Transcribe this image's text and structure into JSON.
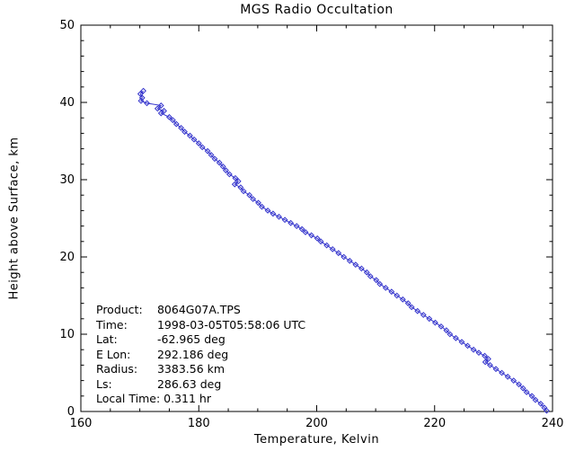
{
  "chart_data": {
    "type": "line",
    "title": "MGS Radio Occultation",
    "xlabel": "Temperature, Kelvin",
    "ylabel": "Height above Surface, km",
    "xlim": [
      160,
      240
    ],
    "ylim": [
      0,
      50
    ],
    "x_major_ticks": [
      160,
      180,
      200,
      220,
      240
    ],
    "y_major_ticks": [
      0,
      10,
      20,
      30,
      40,
      50
    ],
    "x_minor_step": 5,
    "y_minor_step": 2,
    "grid": false,
    "legend": "none",
    "line_color": "#3333cc",
    "axis_color": "#000000",
    "marker": "open-diamond",
    "series": [
      {
        "name": "temperature-profile",
        "points": [
          [
            170.6,
            41.5
          ],
          [
            170.1,
            41.1
          ],
          [
            170.4,
            40.6
          ],
          [
            170.2,
            40.2
          ],
          [
            171.2,
            39.9
          ],
          [
            173.6,
            39.6
          ],
          [
            173.0,
            39.2
          ],
          [
            174.1,
            38.9
          ],
          [
            173.6,
            38.6
          ],
          [
            175.0,
            38.1
          ],
          [
            175.6,
            37.7
          ],
          [
            176.2,
            37.2
          ],
          [
            177.0,
            36.7
          ],
          [
            177.6,
            36.2
          ],
          [
            178.5,
            35.7
          ],
          [
            179.2,
            35.2
          ],
          [
            180.0,
            34.7
          ],
          [
            180.6,
            34.2
          ],
          [
            181.5,
            33.7
          ],
          [
            182.1,
            33.2
          ],
          [
            182.7,
            32.7
          ],
          [
            183.5,
            32.2
          ],
          [
            184.1,
            31.7
          ],
          [
            184.6,
            31.2
          ],
          [
            185.2,
            30.7
          ],
          [
            186.2,
            30.2
          ],
          [
            186.7,
            29.8
          ],
          [
            186.1,
            29.4
          ],
          [
            187.1,
            29.0
          ],
          [
            187.6,
            28.5
          ],
          [
            188.6,
            28.0
          ],
          [
            189.2,
            27.5
          ],
          [
            190.1,
            27.0
          ],
          [
            190.7,
            26.5
          ],
          [
            191.7,
            26.0
          ],
          [
            192.6,
            25.6
          ],
          [
            193.6,
            25.2
          ],
          [
            194.6,
            24.8
          ],
          [
            195.6,
            24.4
          ],
          [
            196.6,
            24.0
          ],
          [
            197.5,
            23.6
          ],
          [
            198.1,
            23.2
          ],
          [
            199.1,
            22.8
          ],
          [
            200.1,
            22.4
          ],
          [
            200.7,
            22.0
          ],
          [
            201.7,
            21.5
          ],
          [
            202.7,
            21.0
          ],
          [
            203.7,
            20.5
          ],
          [
            204.6,
            20.0
          ],
          [
            205.6,
            19.5
          ],
          [
            206.6,
            19.0
          ],
          [
            207.6,
            18.5
          ],
          [
            208.5,
            18.0
          ],
          [
            209.1,
            17.5
          ],
          [
            210.1,
            17.0
          ],
          [
            210.7,
            16.5
          ],
          [
            211.7,
            16.0
          ],
          [
            212.7,
            15.5
          ],
          [
            213.6,
            15.0
          ],
          [
            214.6,
            14.5
          ],
          [
            215.5,
            14.0
          ],
          [
            216.1,
            13.5
          ],
          [
            217.1,
            13.0
          ],
          [
            218.1,
            12.5
          ],
          [
            219.1,
            12.0
          ],
          [
            220.1,
            11.5
          ],
          [
            221.1,
            11.0
          ],
          [
            222.0,
            10.5
          ],
          [
            222.6,
            10.0
          ],
          [
            223.6,
            9.5
          ],
          [
            224.6,
            9.0
          ],
          [
            225.6,
            8.5
          ],
          [
            226.6,
            8.0
          ],
          [
            227.5,
            7.6
          ],
          [
            228.5,
            7.2
          ],
          [
            229.1,
            6.8
          ],
          [
            228.6,
            6.4
          ],
          [
            229.4,
            6.0
          ],
          [
            230.4,
            5.5
          ],
          [
            231.4,
            5.0
          ],
          [
            232.4,
            4.5
          ],
          [
            233.4,
            4.0
          ],
          [
            234.3,
            3.5
          ],
          [
            235.0,
            3.0
          ],
          [
            235.6,
            2.5
          ],
          [
            236.5,
            2.0
          ],
          [
            237.1,
            1.5
          ],
          [
            238.0,
            1.0
          ],
          [
            238.6,
            0.5
          ],
          [
            239.0,
            0.1
          ]
        ]
      }
    ]
  },
  "annotation": {
    "lines": [
      {
        "label": "Product:",
        "value": "8064G07A.TPS"
      },
      {
        "label": "Time:",
        "value": "1998-03-05T05:58:06 UTC"
      },
      {
        "label": "Lat:",
        "value": "-62.965 deg"
      },
      {
        "label": "E Lon:",
        "value": "292.186 deg"
      },
      {
        "label": "Radius:",
        "value": "3383.56 km"
      },
      {
        "label": "Ls:",
        "value": "286.63 deg"
      },
      {
        "label": "Local Time:",
        "value": "0.311 hr"
      }
    ]
  }
}
